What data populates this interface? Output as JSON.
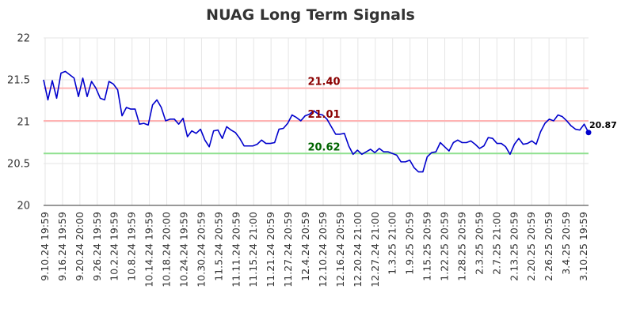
{
  "chart_data": {
    "type": "line",
    "title": "NUAG Long Term Signals",
    "xlabel": "",
    "ylabel": "",
    "ylim": [
      20,
      22
    ],
    "y_ticks": [
      "20",
      "20.5",
      "21",
      "21.5",
      "22"
    ],
    "grid": true,
    "x_tick_labels": [
      "9.10.24 19:59",
      "9.16.24 19:59",
      "9.20.24 20:00",
      "9.26.24 19:59",
      "10.2.24 19:59",
      "10.8.24 19:59",
      "10.14.24 19:59",
      "10.18.24 20:00",
      "10.24.24 19:59",
      "10.30.24 20:59",
      "11.5.24 20:59",
      "11.11.24 20:59",
      "11.15.24 21:00",
      "11.21.24 20:59",
      "11.27.24 20:59",
      "12.4.24 20:59",
      "12.10.24 20:59",
      "12.16.24 20:59",
      "12.20.24 21:00",
      "12.27.24 21:00",
      "1.3.25 21:00",
      "1.9.25 20:59",
      "1.15.25 20:59",
      "1.22.25 20:59",
      "1.28.25 20:59",
      "2.3.25 20:59",
      "2.7.25 21:00",
      "2.13.25 20:59",
      "2.20.25 20:59",
      "2.26.25 20:59",
      "3.4.25 20:59",
      "3.10.25 19:59"
    ],
    "reference_lines": [
      {
        "label": "21.40",
        "value": 21.4,
        "color": "#ffb3b3",
        "label_color": "#8b0000"
      },
      {
        "label": "21.01",
        "value": 21.01,
        "color": "#ffb3b3",
        "label_color": "#8b0000"
      },
      {
        "label": "20.62",
        "value": 20.62,
        "color": "#90e090",
        "label_color": "#006400"
      }
    ],
    "last_value_label": "20.87",
    "line_color": "#0000cc",
    "series": [
      {
        "values": [
          21.5,
          21.26,
          21.49,
          21.28,
          21.58,
          21.6,
          21.56,
          21.52,
          21.3,
          21.52,
          21.3,
          21.48,
          21.4,
          21.28,
          21.26,
          21.48,
          21.45,
          21.38,
          21.07,
          21.17,
          21.15,
          21.15,
          20.97,
          20.98,
          20.96,
          21.2,
          21.26,
          21.17,
          21.01,
          21.03,
          21.03,
          20.97,
          21.04,
          20.82,
          20.89,
          20.86,
          20.91,
          20.78,
          20.7,
          20.89,
          20.9,
          20.8,
          20.94,
          20.9,
          20.87,
          20.8,
          20.71,
          20.71,
          20.71,
          20.73,
          20.78,
          20.74,
          20.74,
          20.75,
          20.91,
          20.92,
          20.98,
          21.08,
          21.05,
          21.01,
          21.07,
          21.09,
          21.13,
          21.09,
          21.08,
          21.03,
          20.94,
          20.85,
          20.85,
          20.86,
          20.71,
          20.61,
          20.66,
          20.61,
          20.64,
          20.67,
          20.63,
          20.68,
          20.64,
          20.64,
          20.62,
          20.6,
          20.52,
          20.52,
          20.54,
          20.45,
          20.4,
          20.4,
          20.58,
          20.63,
          20.64,
          20.75,
          20.7,
          20.65,
          20.75,
          20.78,
          20.75,
          20.75,
          20.77,
          20.73,
          20.68,
          20.71,
          20.81,
          20.8,
          20.74,
          20.74,
          20.7,
          20.61,
          20.73,
          20.8,
          20.73,
          20.74,
          20.77,
          20.73,
          20.88,
          20.98,
          21.03,
          21.01,
          21.08,
          21.06,
          21.01,
          20.95,
          20.91,
          20.9,
          20.97,
          20.87
        ]
      }
    ]
  }
}
